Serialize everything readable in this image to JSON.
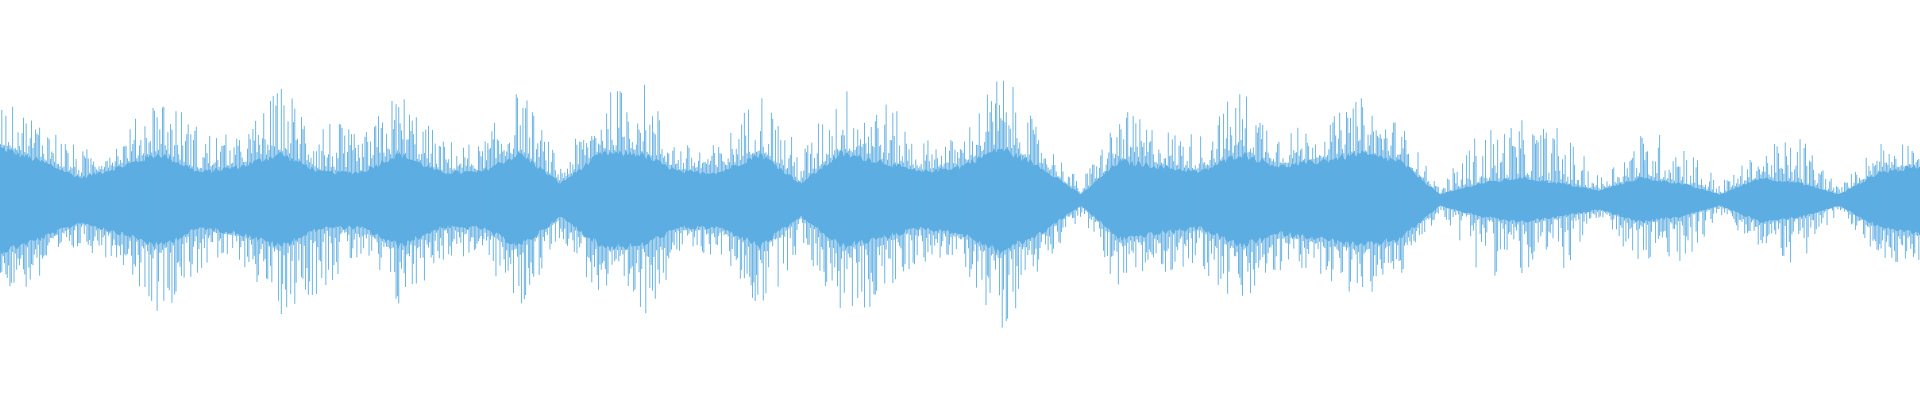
{
  "chart_data": {
    "type": "area",
    "description_kind": "audio-waveform",
    "color": "#5dade2",
    "amplitude_range": [
      -1,
      1
    ],
    "grid": false,
    "x_normalized": [
      0,
      0.021,
      0.042,
      0.063,
      0.083,
      0.104,
      0.125,
      0.146,
      0.167,
      0.188,
      0.208,
      0.229,
      0.25,
      0.271,
      0.292,
      0.313,
      0.333,
      0.354,
      0.375,
      0.396,
      0.417,
      0.438,
      0.458,
      0.479,
      0.5,
      0.521,
      0.542,
      0.563,
      0.583,
      0.604,
      0.625,
      0.646,
      0.667,
      0.688,
      0.708,
      0.729,
      0.75,
      0.771,
      0.792,
      0.813,
      0.833,
      0.854,
      0.875,
      0.896,
      0.917,
      0.938,
      0.958,
      0.979,
      1
    ],
    "series": [
      {
        "role": "peak",
        "values": [
          0.49,
          0.43,
          0.25,
          0.31,
          0.58,
          0.37,
          0.31,
          0.58,
          0.46,
          0.31,
          0.58,
          0.31,
          0.28,
          0.58,
          0.18,
          0.52,
          0.64,
          0.28,
          0.28,
          0.58,
          0.25,
          0.58,
          0.55,
          0.31,
          0.31,
          0.67,
          0.34,
          0.09,
          0.46,
          0.37,
          0.34,
          0.58,
          0.37,
          0.37,
          0.52,
          0.4,
          0.06,
          0.37,
          0.4,
          0.37,
          0.12,
          0.34,
          0.34,
          0.09,
          0.25,
          0.34,
          0.06,
          0.31,
          0.31
        ]
      },
      {
        "role": "body",
        "values": [
          0.28,
          0.21,
          0.12,
          0.18,
          0.25,
          0.15,
          0.18,
          0.25,
          0.15,
          0.15,
          0.25,
          0.15,
          0.15,
          0.25,
          0.09,
          0.25,
          0.25,
          0.15,
          0.15,
          0.25,
          0.09,
          0.25,
          0.21,
          0.15,
          0.18,
          0.28,
          0.18,
          0.03,
          0.21,
          0.18,
          0.15,
          0.25,
          0.18,
          0.21,
          0.25,
          0.21,
          0.03,
          0.09,
          0.12,
          0.09,
          0.05,
          0.12,
          0.09,
          0.03,
          0.12,
          0.09,
          0.03,
          0.15,
          0.18
        ]
      }
    ]
  }
}
